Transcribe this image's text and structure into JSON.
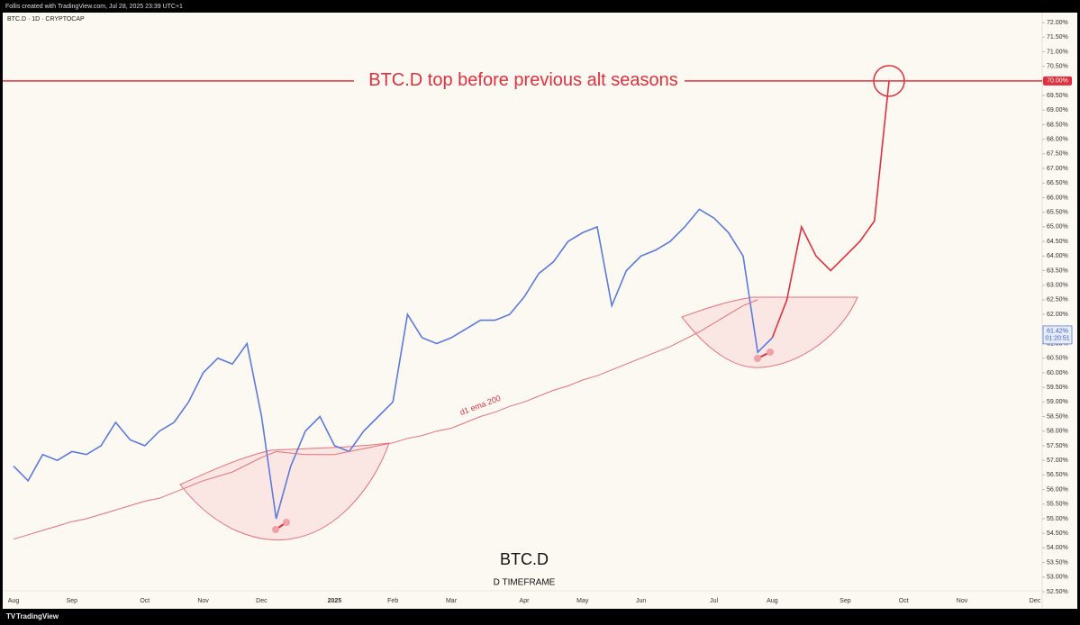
{
  "chart_data": {
    "type": "line",
    "top_caption": "Follis created with TradingView.com, Jul 28, 2025 23:39 UTC+1",
    "symbol_header": "BTC.D · 1D · CRYPTOCAP",
    "title": "BTC.D",
    "subtitle": "D TIMEFRAME",
    "brand": "TradingView",
    "categories": [
      "Aug",
      null,
      null,
      null,
      "Sep",
      null,
      null,
      null,
      null,
      "Oct",
      null,
      null,
      null,
      "Nov",
      null,
      null,
      null,
      "Dec",
      null,
      null,
      null,
      null,
      "2025",
      null,
      null,
      null,
      "Feb",
      null,
      null,
      null,
      "Mar",
      null,
      null,
      null,
      null,
      "Apr",
      null,
      null,
      null,
      "May",
      null,
      null,
      null,
      "Jun",
      null,
      null,
      null,
      null,
      "Jul",
      null,
      null,
      null,
      "Aug",
      null,
      null,
      null,
      null,
      "Sep",
      null,
      null,
      null,
      "Oct",
      null,
      null,
      null,
      "Nov",
      null,
      null,
      null,
      null,
      "Dec"
    ],
    "series": [
      {
        "color": "#5b7be0",
        "values": [
          56.8,
          56.3,
          57.2,
          57.0,
          57.3,
          57.2,
          57.5,
          58.3,
          57.7,
          57.5,
          58.0,
          58.3,
          59.0,
          60.0,
          60.5,
          60.3,
          61.0,
          58.5,
          55.0,
          56.8,
          58.0,
          58.5,
          57.5,
          57.3,
          58.0,
          58.5,
          59.0,
          62.0,
          61.2,
          61.0,
          61.2,
          61.5,
          61.8,
          61.8,
          62.0,
          62.6,
          63.4,
          63.8,
          64.5,
          64.8,
          65.0,
          62.3,
          63.5,
          64.0,
          64.2,
          64.5,
          65.0,
          65.6,
          65.3,
          64.8,
          64.0,
          60.7,
          61.2,
          null,
          null,
          null,
          null,
          null,
          null,
          null,
          null,
          null,
          null,
          null,
          null,
          null,
          null,
          null,
          null,
          null,
          null
        ]
      },
      {
        "color": "#e0303e",
        "values": [
          null,
          null,
          null,
          null,
          null,
          null,
          null,
          null,
          null,
          null,
          null,
          null,
          null,
          null,
          null,
          null,
          null,
          null,
          null,
          null,
          null,
          null,
          null,
          null,
          null,
          null,
          null,
          null,
          null,
          null,
          null,
          null,
          null,
          null,
          null,
          null,
          null,
          null,
          null,
          null,
          null,
          null,
          null,
          null,
          null,
          null,
          null,
          null,
          null,
          null,
          null,
          null,
          61.2,
          62.5,
          65.0,
          64.0,
          63.5,
          64.0,
          64.5,
          65.2,
          70.0,
          null,
          null,
          null,
          null,
          null,
          null,
          null,
          null,
          null,
          null
        ]
      },
      {
        "name": "d1 ema 200",
        "color": "#e8707a",
        "values": [
          54.3,
          54.45,
          54.6,
          54.75,
          54.9,
          55.0,
          55.15,
          55.3,
          55.45,
          55.6,
          55.7,
          55.9,
          56.1,
          56.3,
          56.45,
          56.6,
          56.85,
          57.1,
          57.3,
          57.25,
          57.2,
          57.2,
          57.2,
          57.3,
          57.4,
          57.5,
          57.6,
          57.75,
          57.85,
          58.0,
          58.1,
          58.3,
          58.5,
          58.65,
          58.85,
          59.0,
          59.2,
          59.4,
          59.55,
          59.75,
          59.9,
          60.1,
          60.3,
          60.5,
          60.7,
          60.9,
          61.15,
          61.4,
          61.7,
          62.0,
          62.3,
          62.5,
          null,
          null,
          null,
          null,
          null,
          null,
          null,
          null,
          null,
          null,
          null,
          null,
          null,
          null,
          null,
          null,
          null,
          null,
          null
        ]
      }
    ],
    "hline": {
      "value": 70,
      "label": "70.00%"
    },
    "hline_text": "BTC.D top before previous alt seasons",
    "last_price": {
      "value": 61.42,
      "label": "61.42%"
    },
    "countdown": "01:20:51",
    "ylim": [
      52.2,
      72.3
    ],
    "yticks": [
      {
        "value": 72,
        "label": "72.00%"
      },
      {
        "value": 71.5,
        "label": "71.50%"
      },
      {
        "value": 71,
        "label": "71.00%"
      },
      {
        "value": 70.5,
        "label": "70.50%"
      },
      {
        "value": 70,
        "label": "70.00%"
      },
      {
        "value": 69.5,
        "label": "69.50%"
      },
      {
        "value": 69,
        "label": "69.00%"
      },
      {
        "value": 68.5,
        "label": "68.50%"
      },
      {
        "value": 68,
        "label": "68.00%"
      },
      {
        "value": 67.5,
        "label": "67.50%"
      },
      {
        "value": 67,
        "label": "67.00%"
      },
      {
        "value": 66.5,
        "label": "66.50%"
      },
      {
        "value": 66,
        "label": "66.00%"
      },
      {
        "value": 65.5,
        "label": "65.50%"
      },
      {
        "value": 65,
        "label": "65.00%"
      },
      {
        "value": 64.5,
        "label": "64.50%"
      },
      {
        "value": 64,
        "label": "64.00%"
      },
      {
        "value": 63.5,
        "label": "63.50%"
      },
      {
        "value": 63,
        "label": "63.00%"
      },
      {
        "value": 62.5,
        "label": "62.50%"
      },
      {
        "value": 62,
        "label": "62.00%"
      },
      {
        "value": 61.5,
        "label": "61.50%"
      },
      {
        "value": 61,
        "label": "61.00%"
      },
      {
        "value": 60.5,
        "label": "60.50%"
      },
      {
        "value": 60,
        "label": "60.00%"
      },
      {
        "value": 59.5,
        "label": "59.50%"
      },
      {
        "value": 59,
        "label": "59.00%"
      },
      {
        "value": 58.5,
        "label": "58.50%"
      },
      {
        "value": 58,
        "label": "58.00%"
      },
      {
        "value": 57.5,
        "label": "57.50%"
      },
      {
        "value": 57,
        "label": "57.00%"
      },
      {
        "value": 56.5,
        "label": "56.50%"
      },
      {
        "value": 56,
        "label": "56.00%"
      },
      {
        "value": 55.5,
        "label": "55.50%"
      },
      {
        "value": 55,
        "label": "55.00%"
      },
      {
        "value": 54.5,
        "label": "54.50%"
      },
      {
        "value": 54,
        "label": "54.00%"
      },
      {
        "value": 53.5,
        "label": "53.50%"
      },
      {
        "value": 53,
        "label": "53.00%"
      },
      {
        "value": 52.5,
        "label": "52.50%"
      }
    ],
    "grid": false
  }
}
